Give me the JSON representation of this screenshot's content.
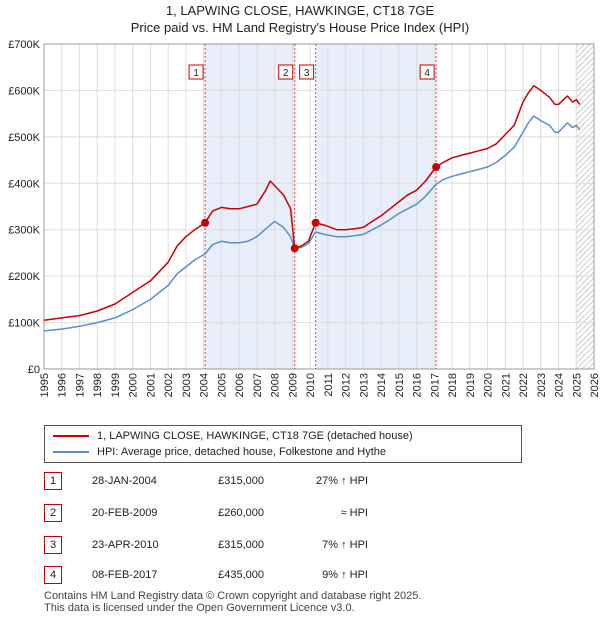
{
  "title_line1": "1, LAPWING CLOSE, HAWKINGE, CT18 7GE",
  "title_line2": "Price paid vs. HM Land Registry's House Price Index (HPI)",
  "chart_data": {
    "type": "line",
    "title": "1, LAPWING CLOSE, HAWKINGE, CT18 7GE",
    "subtitle": "Price paid vs. HM Land Registry's House Price Index (HPI)",
    "xlim": [
      1995,
      2026
    ],
    "ylim": [
      0,
      700000
    ],
    "x_ticks": [
      1995,
      1996,
      1997,
      1998,
      1999,
      2000,
      2001,
      2002,
      2003,
      2004,
      2005,
      2006,
      2007,
      2008,
      2009,
      2010,
      2011,
      2012,
      2013,
      2014,
      2015,
      2016,
      2017,
      2018,
      2019,
      2020,
      2021,
      2022,
      2023,
      2024,
      2025,
      2026
    ],
    "x_tick_labels": [
      "1995",
      "1996",
      "1997",
      "1998",
      "1999",
      "2000",
      "2001",
      "2002",
      "2003",
      "2004",
      "2005",
      "2006",
      "2007",
      "2008",
      "2009",
      "2010",
      "2011",
      "2012",
      "2013",
      "2014",
      "2015",
      "2016",
      "2017",
      "2018",
      "2019",
      "2020",
      "2021",
      "2022",
      "2023",
      "2024",
      "2025",
      "2026"
    ],
    "y_ticks": [
      0,
      100000,
      200000,
      300000,
      400000,
      500000,
      600000,
      700000
    ],
    "y_tick_labels": [
      "£0",
      "£100K",
      "£200K",
      "£300K",
      "£400K",
      "£500K",
      "£600K",
      "£700K"
    ],
    "grid": true,
    "forecast_from": 2025.0,
    "shaded_ranges": [
      [
        2004.08,
        2009.13
      ],
      [
        2010.31,
        2017.1
      ]
    ],
    "series": [
      {
        "name": "1, LAPWING CLOSE, HAWKINGE, CT18 7GE (detached house)",
        "color": "#cc0000",
        "x": [
          1995.0,
          1996.0,
          1997.0,
          1998.0,
          1999.0,
          2000.0,
          2001.0,
          2002.0,
          2002.5,
          2003.0,
          2003.5,
          2004.08,
          2004.5,
          2005.0,
          2005.5,
          2006.0,
          2006.5,
          2007.0,
          2007.5,
          2007.75,
          2008.0,
          2008.5,
          2008.9,
          2009.13,
          2009.5,
          2009.9,
          2010.31,
          2010.8,
          2011.5,
          2012.0,
          2012.5,
          2013.0,
          2013.5,
          2014.0,
          2014.5,
          2015.0,
          2015.5,
          2016.0,
          2016.5,
          2017.1,
          2017.5,
          2018.0,
          2018.5,
          2019.0,
          2019.5,
          2020.0,
          2020.5,
          2021.0,
          2021.5,
          2022.0,
          2022.3,
          2022.6,
          2023.0,
          2023.5,
          2023.8,
          2024.0,
          2024.5,
          2024.8,
          2025.0,
          2025.2
        ],
        "values": [
          105000,
          110000,
          115000,
          125000,
          140000,
          165000,
          190000,
          230000,
          265000,
          285000,
          300000,
          315000,
          340000,
          348000,
          345000,
          345000,
          350000,
          355000,
          385000,
          405000,
          395000,
          375000,
          345000,
          260000,
          265000,
          275000,
          315000,
          310000,
          300000,
          300000,
          302000,
          305000,
          318000,
          330000,
          345000,
          360000,
          375000,
          385000,
          405000,
          435000,
          445000,
          455000,
          460000,
          465000,
          470000,
          475000,
          485000,
          505000,
          525000,
          575000,
          595000,
          610000,
          600000,
          585000,
          570000,
          570000,
          588000,
          575000,
          580000,
          570000
        ]
      },
      {
        "name": "HPI: Average price, detached house, Folkestone and Hythe",
        "color": "#5b8ecb",
        "x": [
          1995.0,
          1996.0,
          1997.0,
          1998.0,
          1999.0,
          2000.0,
          2001.0,
          2002.0,
          2002.5,
          2003.0,
          2003.5,
          2004.08,
          2004.5,
          2005.0,
          2005.5,
          2006.0,
          2006.5,
          2007.0,
          2007.5,
          2008.0,
          2008.5,
          2008.9,
          2009.13,
          2009.5,
          2009.9,
          2010.31,
          2010.8,
          2011.5,
          2012.0,
          2012.5,
          2013.0,
          2013.5,
          2014.0,
          2014.5,
          2015.0,
          2015.5,
          2016.0,
          2016.5,
          2017.1,
          2017.5,
          2018.0,
          2018.5,
          2019.0,
          2019.5,
          2020.0,
          2020.5,
          2021.0,
          2021.5,
          2022.0,
          2022.3,
          2022.6,
          2023.0,
          2023.5,
          2023.8,
          2024.0,
          2024.5,
          2024.8,
          2025.0,
          2025.2
        ],
        "values": [
          82000,
          86000,
          92000,
          100000,
          110000,
          128000,
          150000,
          180000,
          205000,
          220000,
          235000,
          248000,
          268000,
          275000,
          272000,
          272000,
          275000,
          285000,
          302000,
          318000,
          305000,
          285000,
          260000,
          262000,
          270000,
          295000,
          290000,
          285000,
          285000,
          287000,
          290000,
          300000,
          310000,
          322000,
          335000,
          345000,
          355000,
          372000,
          398000,
          408000,
          415000,
          420000,
          425000,
          430000,
          435000,
          445000,
          460000,
          478000,
          510000,
          530000,
          545000,
          535000,
          525000,
          510000,
          510000,
          530000,
          520000,
          525000,
          515000
        ]
      }
    ],
    "sales": [
      {
        "label": "1",
        "x": 2004.08,
        "value": 315000
      },
      {
        "label": "2",
        "x": 2009.13,
        "value": 260000
      },
      {
        "label": "3",
        "x": 2010.31,
        "value": 315000
      },
      {
        "label": "4",
        "x": 2017.1,
        "value": 435000
      }
    ]
  },
  "legend": {
    "items": [
      {
        "label": "1, LAPWING CLOSE, HAWKINGE, CT18 7GE (detached house)",
        "color": "#cc0000"
      },
      {
        "label": "HPI: Average price, detached house, Folkestone and Hythe",
        "color": "#5b8ecb"
      }
    ]
  },
  "sales_table": [
    {
      "num": "1",
      "date": "28-JAN-2004",
      "price": "£315,000",
      "hpi": "27% ↑ HPI"
    },
    {
      "num": "2",
      "date": "20-FEB-2009",
      "price": "£260,000",
      "hpi": "≈ HPI"
    },
    {
      "num": "3",
      "date": "23-APR-2010",
      "price": "£315,000",
      "hpi": "7% ↑ HPI"
    },
    {
      "num": "4",
      "date": "08-FEB-2017",
      "price": "£435,000",
      "hpi": "9% ↑ HPI"
    }
  ],
  "footer": {
    "line1": "Contains HM Land Registry data © Crown copyright and database right 2025.",
    "line2": "This data is licensed under the Open Government Licence v3.0."
  }
}
